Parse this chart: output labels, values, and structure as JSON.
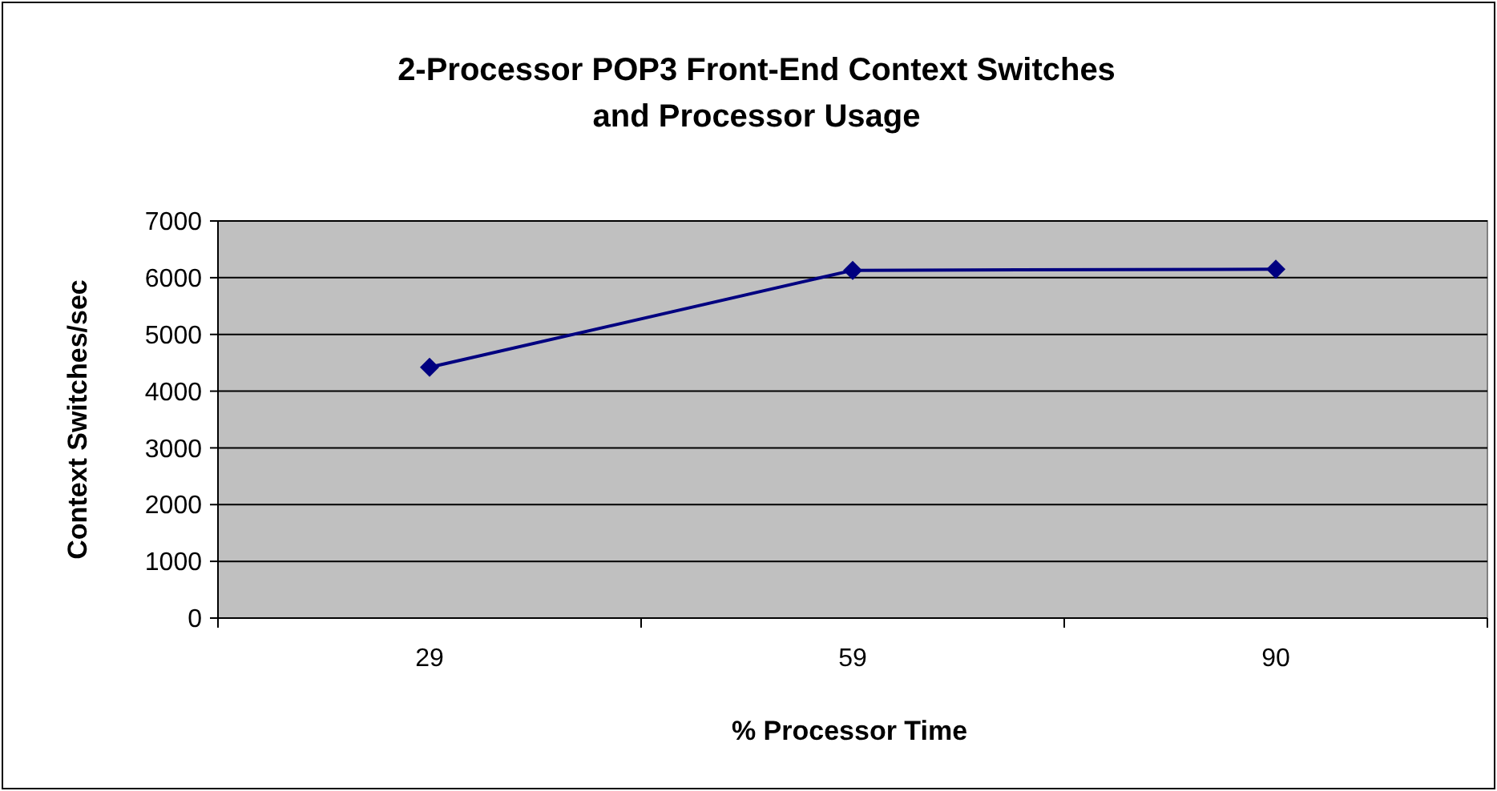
{
  "chart_data": {
    "type": "line",
    "title": "2-Processor POP3 Front-End Context Switches\nand Processor Usage",
    "xlabel": "% Processor Time",
    "ylabel": "Context Switches/sec",
    "categories": [
      "29",
      "59",
      "90"
    ],
    "series": [
      {
        "color": "#000080",
        "values": [
          4420,
          6130,
          6150
        ]
      }
    ],
    "ylim": [
      0,
      7000
    ],
    "yticks": [
      0,
      1000,
      2000,
      3000,
      4000,
      5000,
      6000,
      7000
    ],
    "grid": "y",
    "marker": "diamond",
    "line_style": "solid"
  }
}
